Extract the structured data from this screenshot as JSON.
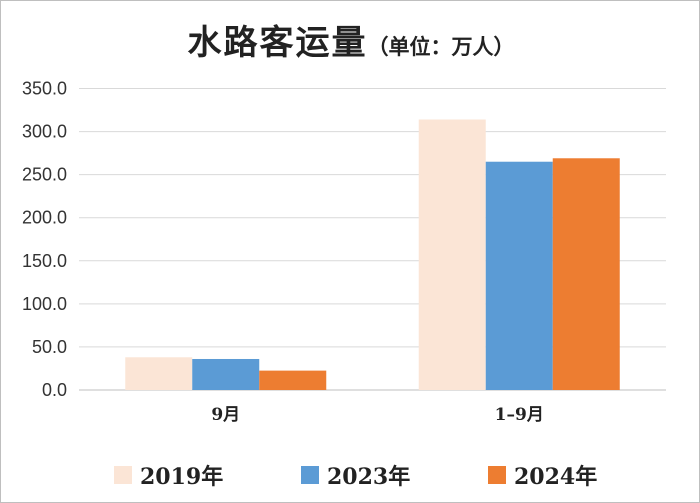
{
  "chart_data": {
    "type": "bar",
    "title": "水路客运量",
    "subtitle": "（单位：万人）",
    "categories": [
      "9月",
      "1–9月"
    ],
    "series": [
      {
        "name": "2019年",
        "values": [
          38.0,
          314.0
        ],
        "color": "#fbe5d6"
      },
      {
        "name": "2023年",
        "values": [
          36.0,
          265.0
        ],
        "color": "#5b9bd5"
      },
      {
        "name": "2024年",
        "values": [
          22.5,
          269.0
        ],
        "color": "#ed7d31"
      }
    ],
    "ylim": [
      0,
      350
    ],
    "yticks": [
      "0.0",
      "50.0",
      "100.0",
      "150.0",
      "200.0",
      "250.0",
      "300.0",
      "350.0"
    ],
    "xlabel": "",
    "ylabel": "",
    "grid": true,
    "legend_position": "bottom"
  }
}
